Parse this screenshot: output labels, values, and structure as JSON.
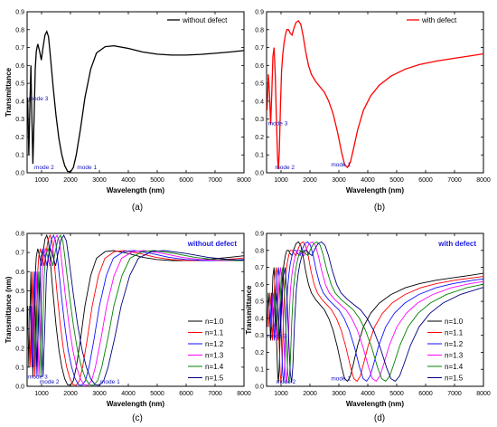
{
  "chart_data": [
    {
      "type": "line",
      "caption": "(a)",
      "xlabel": "Wavelength (nm)",
      "ylabel": "Transmittance",
      "xlim": [
        500,
        8000
      ],
      "ylim": [
        0,
        0.9
      ],
      "xticks": [
        1000,
        2000,
        3000,
        4000,
        5000,
        6000,
        7000,
        8000
      ],
      "yticks": [
        0.0,
        0.1,
        0.2,
        0.3,
        0.4,
        0.5,
        0.6,
        0.7,
        0.8,
        0.9
      ],
      "legend_position": "top-right",
      "legend_style": "line",
      "annotations": [
        {
          "text": "mode 3",
          "x": 520,
          "y": 0.4
        },
        {
          "text": "mode 2",
          "x": 720,
          "y": 0.015
        },
        {
          "text": "mode 1",
          "x": 2200,
          "y": 0.015
        }
      ],
      "series": [
        {
          "name": "without defect",
          "color": "#000000",
          "points": [
            [
              520,
              0.42
            ],
            [
              560,
              0.1
            ],
            [
              600,
              0.4
            ],
            [
              630,
              0.6
            ],
            [
              660,
              0.35
            ],
            [
              700,
              0.05
            ],
            [
              740,
              0.3
            ],
            [
              780,
              0.58
            ],
            [
              820,
              0.68
            ],
            [
              870,
              0.72
            ],
            [
              930,
              0.68
            ],
            [
              990,
              0.63
            ],
            [
              1050,
              0.7
            ],
            [
              1120,
              0.77
            ],
            [
              1180,
              0.79
            ],
            [
              1240,
              0.76
            ],
            [
              1300,
              0.66
            ],
            [
              1400,
              0.48
            ],
            [
              1500,
              0.32
            ],
            [
              1600,
              0.19
            ],
            [
              1700,
              0.1
            ],
            [
              1800,
              0.04
            ],
            [
              1900,
              0.008
            ],
            [
              2000,
              0.005
            ],
            [
              2100,
              0.03
            ],
            [
              2200,
              0.1
            ],
            [
              2350,
              0.25
            ],
            [
              2500,
              0.42
            ],
            [
              2700,
              0.58
            ],
            [
              2900,
              0.67
            ],
            [
              3200,
              0.705
            ],
            [
              3500,
              0.71
            ],
            [
              4000,
              0.695
            ],
            [
              4500,
              0.675
            ],
            [
              5000,
              0.663
            ],
            [
              5500,
              0.658
            ],
            [
              6000,
              0.658
            ],
            [
              6500,
              0.662
            ],
            [
              7000,
              0.668
            ],
            [
              7500,
              0.675
            ],
            [
              8000,
              0.683
            ]
          ]
        }
      ]
    },
    {
      "type": "line",
      "caption": "(b)",
      "xlabel": "Wavelength (nm)",
      "ylabel": "",
      "xlim": [
        500,
        8000
      ],
      "ylim": [
        0,
        0.9
      ],
      "xticks": [
        1000,
        2000,
        3000,
        4000,
        5000,
        6000,
        7000,
        8000
      ],
      "yticks": [
        0.0,
        0.1,
        0.2,
        0.3,
        0.4,
        0.5,
        0.6,
        0.7,
        0.8,
        0.9
      ],
      "legend_position": "top-right",
      "legend_style": "line",
      "annotations": [
        {
          "text": "mode 3",
          "x": 520,
          "y": 0.26
        },
        {
          "text": "mode 2",
          "x": 760,
          "y": 0.015
        },
        {
          "text": "mode 1",
          "x": 2700,
          "y": 0.03
        }
      ],
      "series": [
        {
          "name": "with defect",
          "color": "#ff0000",
          "points": [
            [
              520,
              0.35
            ],
            [
              560,
              0.55
            ],
            [
              600,
              0.45
            ],
            [
              640,
              0.27
            ],
            [
              680,
              0.45
            ],
            [
              720,
              0.65
            ],
            [
              760,
              0.7
            ],
            [
              800,
              0.55
            ],
            [
              840,
              0.3
            ],
            [
              880,
              0.08
            ],
            [
              910,
              0.02
            ],
            [
              940,
              0.12
            ],
            [
              980,
              0.38
            ],
            [
              1020,
              0.57
            ],
            [
              1060,
              0.66
            ],
            [
              1100,
              0.72
            ],
            [
              1150,
              0.77
            ],
            [
              1200,
              0.8
            ],
            [
              1260,
              0.8
            ],
            [
              1320,
              0.78
            ],
            [
              1380,
              0.77
            ],
            [
              1450,
              0.81
            ],
            [
              1520,
              0.84
            ],
            [
              1600,
              0.85
            ],
            [
              1680,
              0.83
            ],
            [
              1760,
              0.77
            ],
            [
              1850,
              0.68
            ],
            [
              1950,
              0.6
            ],
            [
              2050,
              0.55
            ],
            [
              2200,
              0.51
            ],
            [
              2350,
              0.48
            ],
            [
              2500,
              0.45
            ],
            [
              2650,
              0.4
            ],
            [
              2800,
              0.33
            ],
            [
              2950,
              0.23
            ],
            [
              3100,
              0.11
            ],
            [
              3200,
              0.045
            ],
            [
              3300,
              0.03
            ],
            [
              3400,
              0.06
            ],
            [
              3500,
              0.13
            ],
            [
              3650,
              0.24
            ],
            [
              3850,
              0.35
            ],
            [
              4100,
              0.43
            ],
            [
              4400,
              0.49
            ],
            [
              4800,
              0.54
            ],
            [
              5300,
              0.58
            ],
            [
              5800,
              0.605
            ],
            [
              6400,
              0.625
            ],
            [
              7000,
              0.64
            ],
            [
              7500,
              0.652
            ],
            [
              8000,
              0.665
            ]
          ]
        }
      ]
    },
    {
      "type": "line",
      "caption": "(c)",
      "title": "without defect",
      "xlabel": "Wavelength (nm)",
      "ylabel": "Transmittance (nm)",
      "xlim": [
        500,
        8000
      ],
      "ylim": [
        0,
        0.8
      ],
      "xticks": [
        1000,
        2000,
        3000,
        4000,
        5000,
        6000,
        7000,
        8000
      ],
      "yticks": [
        0.0,
        0.1,
        0.2,
        0.3,
        0.4,
        0.5,
        0.6,
        0.7,
        0.8
      ],
      "legend_position": "lower-right",
      "legend_style": "list",
      "annotations": [
        {
          "text": "mode 3",
          "x": 500,
          "y": 0.035
        },
        {
          "text": "mode 2",
          "x": 900,
          "y": 0.01
        },
        {
          "text": "mode 1",
          "x": 3000,
          "y": 0.01
        }
      ],
      "series": [
        {
          "name": "n=1.0",
          "color": "#000000",
          "n": 1.0
        },
        {
          "name": "n=1.1",
          "color": "#ff0000",
          "n": 1.1
        },
        {
          "name": "n=1.2",
          "color": "#1010ff",
          "n": 1.2
        },
        {
          "name": "n=1.3",
          "color": "#ff00ff",
          "n": 1.3
        },
        {
          "name": "n=1.4",
          "color": "#008000",
          "n": 1.4
        },
        {
          "name": "n=1.5",
          "color": "#000080",
          "n": 1.5
        }
      ],
      "base_curve": [
        [
          520,
          0.42
        ],
        [
          560,
          0.1
        ],
        [
          600,
          0.4
        ],
        [
          630,
          0.6
        ],
        [
          660,
          0.35
        ],
        [
          700,
          0.05
        ],
        [
          740,
          0.3
        ],
        [
          780,
          0.58
        ],
        [
          820,
          0.68
        ],
        [
          870,
          0.72
        ],
        [
          930,
          0.68
        ],
        [
          990,
          0.63
        ],
        [
          1050,
          0.7
        ],
        [
          1120,
          0.77
        ],
        [
          1180,
          0.79
        ],
        [
          1240,
          0.76
        ],
        [
          1300,
          0.66
        ],
        [
          1400,
          0.48
        ],
        [
          1500,
          0.32
        ],
        [
          1600,
          0.19
        ],
        [
          1700,
          0.1
        ],
        [
          1800,
          0.04
        ],
        [
          1900,
          0.008
        ],
        [
          2000,
          0.005
        ],
        [
          2100,
          0.03
        ],
        [
          2200,
          0.1
        ],
        [
          2350,
          0.25
        ],
        [
          2500,
          0.42
        ],
        [
          2700,
          0.58
        ],
        [
          2900,
          0.67
        ],
        [
          3200,
          0.705
        ],
        [
          3500,
          0.71
        ],
        [
          4000,
          0.695
        ],
        [
          4500,
          0.675
        ],
        [
          5000,
          0.663
        ],
        [
          5500,
          0.658
        ],
        [
          6000,
          0.658
        ],
        [
          6500,
          0.662
        ],
        [
          7000,
          0.668
        ],
        [
          7500,
          0.675
        ],
        [
          8000,
          0.683
        ]
      ]
    },
    {
      "type": "line",
      "caption": "(d)",
      "title": "with defect",
      "xlabel": "Wavelength (nm)",
      "ylabel": "Transmittance",
      "xlim": [
        500,
        8000
      ],
      "ylim": [
        0,
        0.9
      ],
      "xticks": [
        1000,
        2000,
        3000,
        4000,
        5000,
        6000,
        7000,
        8000
      ],
      "yticks": [
        0.0,
        0.1,
        0.2,
        0.3,
        0.4,
        0.5,
        0.6,
        0.7,
        0.8,
        0.9
      ],
      "legend_position": "lower-right",
      "legend_style": "list",
      "annotations": [
        {
          "text": "mode 3",
          "x": 500,
          "y": 0.28
        },
        {
          "text": "mode 2",
          "x": 800,
          "y": 0.01
        },
        {
          "text": "mode 1",
          "x": 2700,
          "y": 0.03
        }
      ],
      "series": [
        {
          "name": "n=1.0",
          "color": "#000000",
          "n": 1.0
        },
        {
          "name": "n=1.1",
          "color": "#ff0000",
          "n": 1.1
        },
        {
          "name": "n=1.2",
          "color": "#1010ff",
          "n": 1.2
        },
        {
          "name": "n=1.3",
          "color": "#ff00ff",
          "n": 1.3
        },
        {
          "name": "n=1.4",
          "color": "#008000",
          "n": 1.4
        },
        {
          "name": "n=1.5",
          "color": "#000080",
          "n": 1.5
        }
      ],
      "base_curve": [
        [
          520,
          0.35
        ],
        [
          560,
          0.55
        ],
        [
          600,
          0.45
        ],
        [
          640,
          0.27
        ],
        [
          680,
          0.45
        ],
        [
          720,
          0.65
        ],
        [
          760,
          0.7
        ],
        [
          800,
          0.55
        ],
        [
          840,
          0.3
        ],
        [
          880,
          0.08
        ],
        [
          910,
          0.02
        ],
        [
          940,
          0.12
        ],
        [
          980,
          0.38
        ],
        [
          1020,
          0.57
        ],
        [
          1060,
          0.66
        ],
        [
          1100,
          0.72
        ],
        [
          1150,
          0.77
        ],
        [
          1200,
          0.8
        ],
        [
          1260,
          0.8
        ],
        [
          1320,
          0.78
        ],
        [
          1380,
          0.77
        ],
        [
          1450,
          0.81
        ],
        [
          1520,
          0.84
        ],
        [
          1600,
          0.85
        ],
        [
          1680,
          0.83
        ],
        [
          1760,
          0.77
        ],
        [
          1850,
          0.68
        ],
        [
          1950,
          0.6
        ],
        [
          2050,
          0.55
        ],
        [
          2200,
          0.51
        ],
        [
          2350,
          0.48
        ],
        [
          2500,
          0.45
        ],
        [
          2650,
          0.4
        ],
        [
          2800,
          0.33
        ],
        [
          2950,
          0.23
        ],
        [
          3100,
          0.11
        ],
        [
          3200,
          0.045
        ],
        [
          3300,
          0.03
        ],
        [
          3400,
          0.06
        ],
        [
          3500,
          0.13
        ],
        [
          3650,
          0.24
        ],
        [
          3850,
          0.35
        ],
        [
          4100,
          0.43
        ],
        [
          4400,
          0.49
        ],
        [
          4800,
          0.54
        ],
        [
          5300,
          0.58
        ],
        [
          5800,
          0.605
        ],
        [
          6400,
          0.625
        ],
        [
          7000,
          0.64
        ],
        [
          7500,
          0.652
        ],
        [
          8000,
          0.665
        ]
      ]
    }
  ]
}
